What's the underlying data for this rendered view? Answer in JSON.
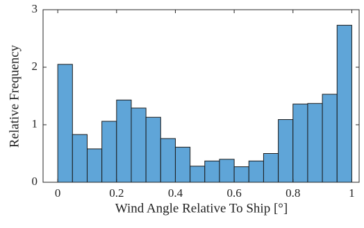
{
  "chart_data": {
    "type": "histogram",
    "xlabel": "Wind Angle Relative To Ship [°]",
    "ylabel": "Relative Frequency",
    "bins": [
      0,
      0.05,
      0.1,
      0.15,
      0.2,
      0.25,
      0.3,
      0.35,
      0.4,
      0.45,
      0.5,
      0.55,
      0.6,
      0.65,
      0.7,
      0.75,
      0.8,
      0.85,
      0.9,
      0.95,
      1
    ],
    "values": [
      2.05,
      0.83,
      0.58,
      1.06,
      1.43,
      1.29,
      1.13,
      0.76,
      0.61,
      0.28,
      0.37,
      0.4,
      0.27,
      0.37,
      0.5,
      1.09,
      1.36,
      1.37,
      1.53,
      2.73
    ],
    "color": "#5fa5d8",
    "xlim": [
      -0.05,
      1.025
    ],
    "xticks": [
      0,
      0.2,
      0.4,
      0.6,
      0.8,
      1
    ],
    "ylim": [
      0,
      3
    ],
    "yticks": [
      0,
      1,
      2,
      3
    ]
  }
}
